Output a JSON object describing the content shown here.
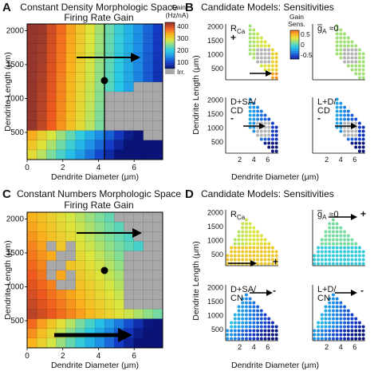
{
  "panels": {
    "A": {
      "letter": "A",
      "title_line1": "Constant Density Morphologic Space",
      "title_line2": "Firing Rate Gain",
      "xlabel": "Dendrite Diameter (μm)",
      "ylabel": "Dendrite Length (μm)",
      "xticks": [
        "0",
        "2",
        "4",
        "6"
      ],
      "yticks": [
        "500",
        "1000",
        "1500",
        "2000"
      ],
      "colorbar": {
        "title_line1": "Gain",
        "title_line2": "(Hz/nA)",
        "ticks": [
          "400",
          "300",
          "200",
          "100"
        ],
        "irr_label": "Irr."
      }
    },
    "B": {
      "letter": "B",
      "title": "Candidate Models: Sensitivities",
      "xlabel": "Dendrite Diameter (μm)",
      "ylabel": "Dendrite Length (μm)",
      "colorbar": {
        "title_line1": "Gain",
        "title_line2": "Sens.",
        "ticks": [
          "0.5",
          "0",
          "-0.5"
        ]
      },
      "subplots": [
        {
          "label_line1": "R",
          "label_sub": "Ca",
          "sign": "+"
        },
        {
          "label_line1": "g",
          "label_sub": "A",
          "label_suffix": " ≈0",
          "sign": ""
        },
        {
          "label_line1": "D+SA/",
          "label_line2": "CD",
          "sign": "-"
        },
        {
          "label_line1": "L+D/",
          "label_line2": "CD",
          "sign": "-"
        }
      ],
      "xticks": [
        "2",
        "4",
        "6"
      ],
      "yticks": [
        "500",
        "1000",
        "1500",
        "2000"
      ]
    },
    "C": {
      "letter": "C",
      "title_line1": "Constant Numbers Morphologic Space",
      "title_line2": "Firing Rate Gain",
      "xlabel": "Dendrite Diameter (μm)",
      "ylabel": "Dendrite Length (μm)",
      "xticks": [
        "0",
        "2",
        "4",
        "6"
      ],
      "yticks": [
        "500",
        "1000",
        "1500",
        "2000"
      ]
    },
    "D": {
      "letter": "D",
      "title": "Candidate Models: Sensitivities",
      "xlabel": "Dendrite Diameter (μm)",
      "ylabel": "Dendrite Length (μm)",
      "subplots": [
        {
          "label_line1": "R",
          "label_sub": "Ca",
          "sign": "+"
        },
        {
          "label_line1": "g",
          "label_sub": "A",
          "label_suffix": " ≈0",
          "sign": "+"
        },
        {
          "label_line1": "D+SA/",
          "label_line2": "CN",
          "sign": "-"
        },
        {
          "label_line1": "L+D/",
          "label_line2": "CN",
          "sign": "-"
        }
      ],
      "xticks": [
        "2",
        "4",
        "6"
      ],
      "yticks": [
        "500",
        "1000",
        "1500",
        "2000"
      ]
    }
  },
  "colors": {
    "irregular": "#a8a8a8",
    "arrow": "#000000",
    "heat_low": "#0a1f8c",
    "heat_high": "#9a3a2a"
  }
}
